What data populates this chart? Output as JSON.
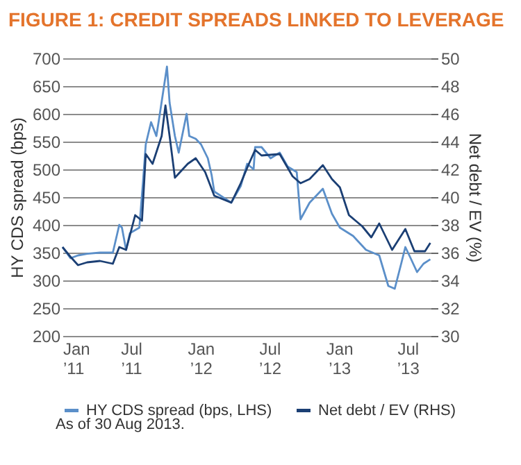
{
  "chart_data": {
    "type": "line",
    "title": "FIGURE 1: CREDIT SPREADS LINKED TO LEVERAGE",
    "ylabel": "HY CDS spread (bps)",
    "y2label": "Net debt / EV (%)",
    "xlim": [
      "2011-01-01",
      "2013-08-31"
    ],
    "xticks": [
      {
        "value": "2011-01-01",
        "label": "Jan ’11"
      },
      {
        "value": "2011-07-01",
        "label": "Jul ’11"
      },
      {
        "value": "2012-01-01",
        "label": "Jan ’12"
      },
      {
        "value": "2012-07-01",
        "label": "Jul ’12"
      },
      {
        "value": "2013-01-01",
        "label": "Jan ’13"
      },
      {
        "value": "2013-07-01",
        "label": "Jul ’13"
      }
    ],
    "ylim": [
      200,
      700
    ],
    "yticks": [
      200,
      250,
      300,
      350,
      400,
      450,
      500,
      550,
      600,
      650,
      700
    ],
    "y2lim": [
      30,
      50
    ],
    "y2ticks": [
      30,
      32,
      34,
      36,
      38,
      40,
      42,
      44,
      46,
      48,
      50
    ],
    "grid": "y",
    "legend": "bottom",
    "line_style": "solid",
    "marker": "none",
    "series": [
      {
        "name": "HY CDS spread (bps, LHS)",
        "color": "#5b8fc9",
        "x": [
          "2011-01-01",
          "2011-01-22",
          "2011-02-11",
          "2011-03-07",
          "2011-04-10",
          "2011-05-14",
          "2011-05-31",
          "2011-06-07",
          "2011-06-18",
          "2011-06-28",
          "2011-07-23",
          "2011-08-02",
          "2011-08-09",
          "2011-08-23",
          "2011-09-06",
          "2011-09-13",
          "2011-10-04",
          "2011-10-11",
          "2011-10-25",
          "2011-11-04",
          "2011-11-25",
          "2011-12-02",
          "2011-12-19",
          "2012-01-02",
          "2012-01-20",
          "2012-01-30",
          "2012-02-06",
          "2012-03-22",
          "2012-04-16",
          "2012-05-03",
          "2012-05-20",
          "2012-05-24",
          "2012-06-10",
          "2012-07-04",
          "2012-07-28",
          "2012-08-18",
          "2012-09-11",
          "2012-09-21",
          "2012-10-15",
          "2012-11-19",
          "2012-12-13",
          "2013-01-03",
          "2013-02-07",
          "2013-03-13",
          "2013-04-17",
          "2013-05-11",
          "2013-05-28",
          "2013-06-14",
          "2013-06-25",
          "2013-07-09",
          "2013-07-26",
          "2013-08-12",
          "2013-08-30"
        ],
        "values": [
          360,
          340,
          345,
          348,
          350,
          350,
          400,
          395,
          355,
          385,
          395,
          480,
          545,
          585,
          560,
          590,
          685,
          620,
          560,
          530,
          600,
          560,
          555,
          545,
          520,
          490,
          460,
          440,
          470,
          510,
          500,
          540,
          540,
          520,
          530,
          505,
          495,
          410,
          440,
          465,
          420,
          395,
          380,
          355,
          345,
          290,
          285,
          330,
          360,
          340,
          315,
          330,
          338
        ]
      },
      {
        "name": "Net debt / EV (RHS)",
        "color": "#1b3f74",
        "axis": "y2",
        "x": [
          "2011-01-01",
          "2011-01-22",
          "2011-02-11",
          "2011-03-07",
          "2011-04-10",
          "2011-05-14",
          "2011-05-31",
          "2011-06-18",
          "2011-07-12",
          "2011-07-30",
          "2011-08-09",
          "2011-08-27",
          "2011-09-20",
          "2011-09-30",
          "2011-10-11",
          "2011-10-25",
          "2011-11-28",
          "2011-12-19",
          "2012-01-13",
          "2012-02-06",
          "2012-03-22",
          "2012-04-16",
          "2012-05-06",
          "2012-05-24",
          "2012-06-10",
          "2012-07-28",
          "2012-08-31",
          "2012-09-21",
          "2012-10-15",
          "2012-11-19",
          "2012-12-13",
          "2013-01-03",
          "2013-01-27",
          "2013-03-03",
          "2013-03-27",
          "2013-04-17",
          "2013-05-21",
          "2013-06-25",
          "2013-07-19",
          "2013-08-16",
          "2013-08-30"
        ],
        "values": [
          36.4,
          35.7,
          35.1,
          35.3,
          35.4,
          35.2,
          36.4,
          36.2,
          38.7,
          38.3,
          43.1,
          42.4,
          44.4,
          46.6,
          44.4,
          41.4,
          42.4,
          42.8,
          41.8,
          40.1,
          39.6,
          41.0,
          42.3,
          43.4,
          43.0,
          43.1,
          41.5,
          41.0,
          41.3,
          42.3,
          41.3,
          40.7,
          38.7,
          37.9,
          37.1,
          38.1,
          36.2,
          37.7,
          36.1,
          36.1,
          36.7
        ]
      }
    ],
    "annotations": [
      "As of 30 Aug 2013."
    ]
  }
}
